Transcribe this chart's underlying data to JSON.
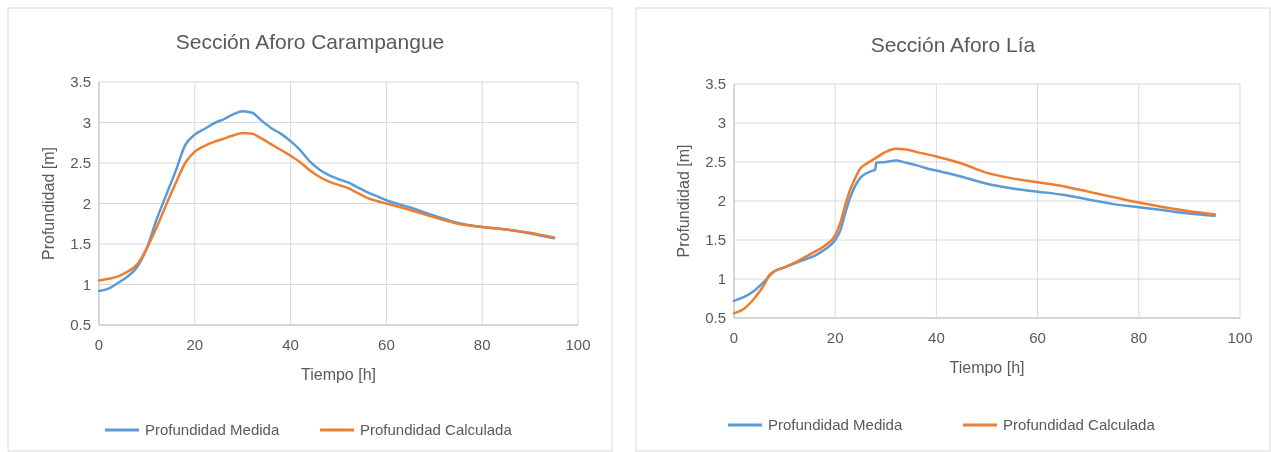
{
  "chart_data": [
    {
      "type": "line",
      "title": "Sección Aforo Carampangue",
      "xlabel": "Tiempo [h]",
      "ylabel": "Profundidad [m]",
      "xlim": [
        0,
        100
      ],
      "xticks": [
        0,
        20,
        40,
        60,
        80,
        100
      ],
      "ylim": [
        0.5,
        3.5
      ],
      "yticks": [
        0.5,
        1,
        1.5,
        2,
        2.5,
        3,
        3.5
      ],
      "grid": true,
      "legend": "bottom",
      "marker": "none",
      "line_style": "solid",
      "series": [
        {
          "name": "Profundidad Medida",
          "color": "#5b9bd5",
          "x": [
            0,
            2,
            4,
            6,
            8,
            10,
            12,
            14,
            16,
            18,
            20,
            22,
            24,
            26,
            28,
            30,
            32,
            34,
            36,
            38,
            40,
            42,
            44,
            46,
            48,
            50,
            52,
            54,
            56,
            58,
            60,
            65,
            70,
            75,
            80,
            85,
            90,
            95
          ],
          "values": [
            0.92,
            0.95,
            1.02,
            1.1,
            1.22,
            1.45,
            1.8,
            2.1,
            2.4,
            2.72,
            2.85,
            2.92,
            2.99,
            3.04,
            3.1,
            3.14,
            3.12,
            3.02,
            2.93,
            2.86,
            2.77,
            2.66,
            2.52,
            2.42,
            2.35,
            2.3,
            2.26,
            2.2,
            2.14,
            2.09,
            2.04,
            1.95,
            1.85,
            1.76,
            1.71,
            1.68,
            1.63,
            1.57
          ]
        },
        {
          "name": "Profundidad Calculada",
          "color": "#ed7d31",
          "x": [
            0,
            2,
            4,
            6,
            8,
            10,
            12,
            14,
            16,
            18,
            20,
            22,
            24,
            26,
            28,
            30,
            32,
            34,
            36,
            38,
            40,
            42,
            44,
            46,
            48,
            50,
            52,
            54,
            56,
            58,
            60,
            65,
            70,
            75,
            80,
            85,
            90,
            95
          ],
          "values": [
            1.05,
            1.07,
            1.1,
            1.16,
            1.25,
            1.45,
            1.7,
            1.98,
            2.25,
            2.5,
            2.64,
            2.71,
            2.76,
            2.8,
            2.84,
            2.87,
            2.86,
            2.8,
            2.73,
            2.66,
            2.59,
            2.51,
            2.41,
            2.33,
            2.27,
            2.23,
            2.19,
            2.13,
            2.07,
            2.03,
            2.0,
            1.92,
            1.83,
            1.75,
            1.71,
            1.68,
            1.64,
            1.58
          ]
        }
      ]
    },
    {
      "type": "line",
      "title": "Sección Aforo Lía",
      "xlabel": "Tiempo [h]",
      "ylabel": "Profundidad [m]",
      "xlim": [
        0,
        100
      ],
      "xticks": [
        0,
        20,
        40,
        60,
        80,
        100
      ],
      "ylim": [
        0.5,
        3.5
      ],
      "yticks": [
        0.5,
        1,
        1.5,
        2,
        2.5,
        3,
        3.5
      ],
      "grid": true,
      "legend": "bottom",
      "marker": "none",
      "line_style": "solid",
      "series": [
        {
          "name": "Profundidad Medida",
          "color": "#5b9bd5",
          "x": [
            0,
            2,
            4,
            6,
            8,
            10,
            12,
            14,
            16,
            18,
            20,
            21,
            22,
            23,
            24,
            25,
            26,
            27,
            27.9,
            28.1,
            30,
            32,
            34,
            36,
            38,
            40,
            45,
            50,
            55,
            60,
            65,
            70,
            75,
            80,
            85,
            90,
            95
          ],
          "values": [
            0.72,
            0.77,
            0.85,
            0.97,
            1.1,
            1.15,
            1.2,
            1.25,
            1.3,
            1.38,
            1.5,
            1.62,
            1.85,
            2.05,
            2.2,
            2.3,
            2.35,
            2.38,
            2.4,
            2.49,
            2.5,
            2.52,
            2.49,
            2.46,
            2.42,
            2.39,
            2.31,
            2.22,
            2.16,
            2.12,
            2.08,
            2.02,
            1.96,
            1.92,
            1.88,
            1.84,
            1.81
          ]
        },
        {
          "name": "Profundidad Calculada",
          "color": "#ed7d31",
          "x": [
            0,
            2,
            4,
            6,
            7,
            8,
            10,
            12,
            14,
            16,
            18,
            20,
            21,
            22,
            23,
            24,
            25,
            26,
            28,
            30,
            32,
            34,
            36,
            40,
            45,
            50,
            55,
            60,
            65,
            70,
            75,
            80,
            85,
            90,
            95
          ],
          "values": [
            0.56,
            0.62,
            0.75,
            0.93,
            1.05,
            1.1,
            1.15,
            1.21,
            1.28,
            1.35,
            1.43,
            1.56,
            1.72,
            1.95,
            2.15,
            2.3,
            2.42,
            2.47,
            2.55,
            2.63,
            2.67,
            2.66,
            2.63,
            2.57,
            2.48,
            2.36,
            2.29,
            2.24,
            2.19,
            2.12,
            2.05,
            1.98,
            1.92,
            1.87,
            1.83
          ]
        }
      ]
    }
  ]
}
